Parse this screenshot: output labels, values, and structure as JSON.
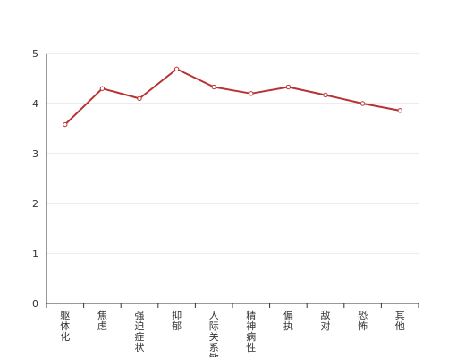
{
  "chart_data": {
    "type": "line",
    "categories": [
      "躯体化",
      "焦虑",
      "强迫症状",
      "抑郁",
      "人际关系敏感",
      "精神病性",
      "偏执",
      "敌对",
      "恐怖",
      "其他"
    ],
    "series": [
      {
        "values": [
          3.58,
          4.3,
          4.1,
          4.69,
          4.33,
          4.2,
          4.33,
          4.17,
          4.0,
          3.86
        ]
      }
    ],
    "y_ticks": [
      "0",
      "1",
      "2",
      "3",
      "4",
      "5"
    ],
    "ylim": [
      0,
      5
    ],
    "grid": true,
    "legend": "none",
    "colors": {
      "line": "#b83232",
      "marker_fill": "#ffffff"
    }
  }
}
